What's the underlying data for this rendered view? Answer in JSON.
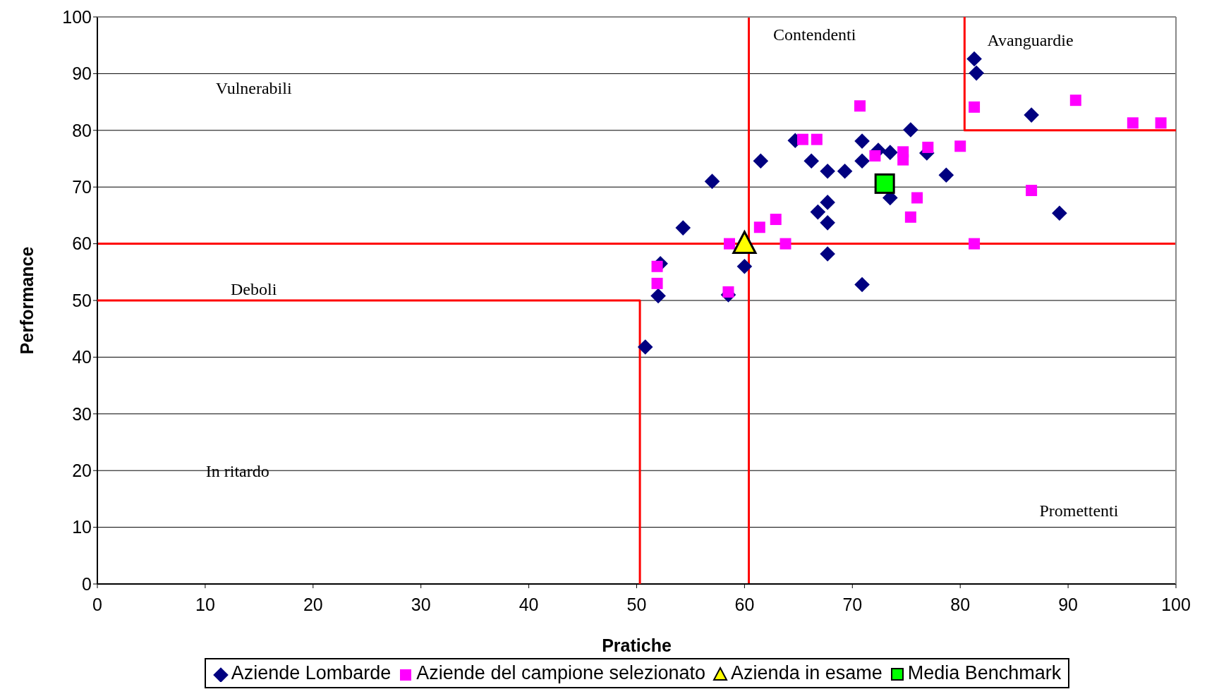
{
  "chart_data": {
    "type": "scatter",
    "xlabel": "Pratiche",
    "ylabel": "Performance",
    "xlim": [
      0,
      100
    ],
    "ylim": [
      0,
      100
    ],
    "xticks": [
      0,
      10,
      20,
      30,
      40,
      50,
      60,
      70,
      80,
      90,
      100
    ],
    "yticks": [
      0,
      10,
      20,
      30,
      40,
      50,
      60,
      70,
      80,
      90,
      100
    ],
    "grid": "y",
    "legend": "bottom",
    "series": [
      {
        "name": "Aziende Lombarde",
        "color": "#000080",
        "marker": "diamond",
        "x": [
          50.8,
          52,
          52.2,
          54.3,
          57,
          58.5,
          60,
          61.5,
          64.7,
          66.2,
          66.8,
          67.7,
          67.7,
          67.7,
          67.7,
          69.3,
          70.9,
          70.9,
          70.9,
          72.4,
          73.5,
          73.5,
          75.4,
          76.9,
          78.7,
          81.3,
          81.5,
          86.6,
          89.2
        ],
        "values": [
          41.8,
          50.8,
          56.5,
          62.8,
          71,
          51,
          56,
          74.6,
          78.2,
          74.6,
          65.6,
          72.8,
          67.3,
          63.7,
          58.2,
          72.8,
          78.1,
          74.6,
          52.8,
          76.5,
          76.1,
          68.1,
          80.1,
          76,
          72.1,
          92.6,
          90.1,
          82.7,
          65.4
        ]
      },
      {
        "name": "Aziende del campione selezionato",
        "color": "#ff00ff",
        "marker": "square",
        "x": [
          51.9,
          51.9,
          58.5,
          58.6,
          61.4,
          62.9,
          63.8,
          65.4,
          66.7,
          70.7,
          72.1,
          74.7,
          74.7,
          75.4,
          76,
          77,
          80,
          81.3,
          81.3,
          86.6,
          90.7,
          96,
          98.6
        ],
        "values": [
          56,
          53,
          51.5,
          60,
          62.9,
          64.3,
          60,
          78.4,
          78.4,
          84.3,
          75.5,
          76.2,
          74.8,
          64.7,
          68.1,
          77,
          77.2,
          84.1,
          60,
          69.4,
          85.3,
          81.3,
          81.3
        ]
      },
      {
        "name": "Azienda in esame",
        "color": "#ffff00",
        "marker": "triangle",
        "x": [
          60
        ],
        "values": [
          60
        ]
      },
      {
        "name": "Media Benchmark",
        "color": "#00ff00",
        "marker": "square",
        "x": [
          73
        ],
        "values": [
          70.6
        ]
      },
      {
        "type": "line",
        "color": "#ff0000",
        "marker": "none",
        "x": [
          0,
          50.3,
          50.3
        ],
        "values": [
          50,
          50,
          0
        ]
      },
      {
        "type": "line",
        "color": "#ff0000",
        "marker": "none",
        "x": [
          80.4,
          80.4,
          100
        ],
        "values": [
          100,
          80,
          80
        ]
      }
    ],
    "ref_lines": [
      {
        "axis": "y",
        "value": 60,
        "color": "#ff0000"
      },
      {
        "axis": "x",
        "value": 60.4,
        "color": "#ff0000"
      }
    ],
    "annotations": [
      "Vulnerabili",
      "Contendenti",
      "Avanguardie",
      "Deboli",
      "In ritardo",
      "Promettenti"
    ]
  }
}
